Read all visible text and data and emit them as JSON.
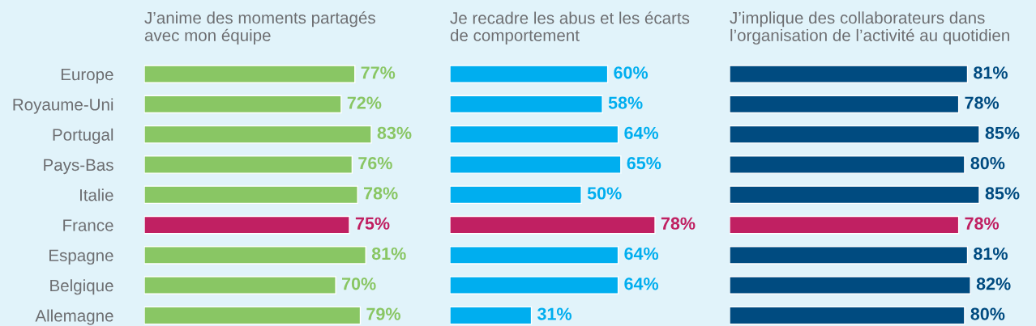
{
  "chart_data": [
    {
      "type": "bar",
      "orientation": "horizontal",
      "title": "J’anime des moments partagés\navec mon équipe",
      "categories": [
        "Europe",
        "Royaume-Uni",
        "Portugal",
        "Pays-Bas",
        "Italie",
        "France",
        "Espagne",
        "Belgique",
        "Allemagne"
      ],
      "series": [
        {
          "values": [
            77,
            72,
            83,
            76,
            78,
            75,
            81,
            70,
            79
          ],
          "colors": [
            "#89c664",
            "#89c664",
            "#89c664",
            "#89c664",
            "#89c664",
            "#c02062",
            "#89c664",
            "#89c664",
            "#89c664"
          ],
          "value_labels": [
            "77%",
            "72%",
            "83%",
            "76%",
            "78%",
            "75%",
            "81%",
            "70%",
            "79%"
          ]
        }
      ],
      "tick_labels": "y"
    },
    {
      "type": "bar",
      "orientation": "horizontal",
      "title": "Je recadre les abus et les écarts\nde comportement",
      "categories": [
        null,
        null,
        null,
        null,
        null,
        null,
        null,
        null,
        null
      ],
      "series": [
        {
          "values": [
            60,
            58,
            64,
            65,
            50,
            78,
            64,
            64,
            31
          ],
          "colors": [
            "#00aeef",
            "#00aeef",
            "#00aeef",
            "#00aeef",
            "#00aeef",
            "#c02062",
            "#00aeef",
            "#00aeef",
            "#00aeef"
          ],
          "value_labels": [
            "60%",
            "58%",
            "64%",
            "65%",
            "50%",
            "78%",
            "64%",
            "64%",
            "31%"
          ]
        }
      ]
    },
    {
      "type": "bar",
      "orientation": "horizontal",
      "title": "J’implique des collaborateurs dans\nl’organisation de l’activité au quotidien",
      "categories": [
        null,
        null,
        null,
        null,
        null,
        null,
        null,
        null,
        null
      ],
      "series": [
        {
          "values": [
            81,
            78,
            85,
            80,
            85,
            78,
            81,
            82,
            80
          ],
          "colors": [
            "#004b80",
            "#004b80",
            "#004b80",
            "#004b80",
            "#004b80",
            "#c02062",
            "#004b80",
            "#004b80",
            "#004b80"
          ],
          "value_labels": [
            "81%",
            "78%",
            "85%",
            "80%",
            "85%",
            "78%",
            "81%",
            "82%",
            "80%"
          ]
        }
      ]
    }
  ]
}
